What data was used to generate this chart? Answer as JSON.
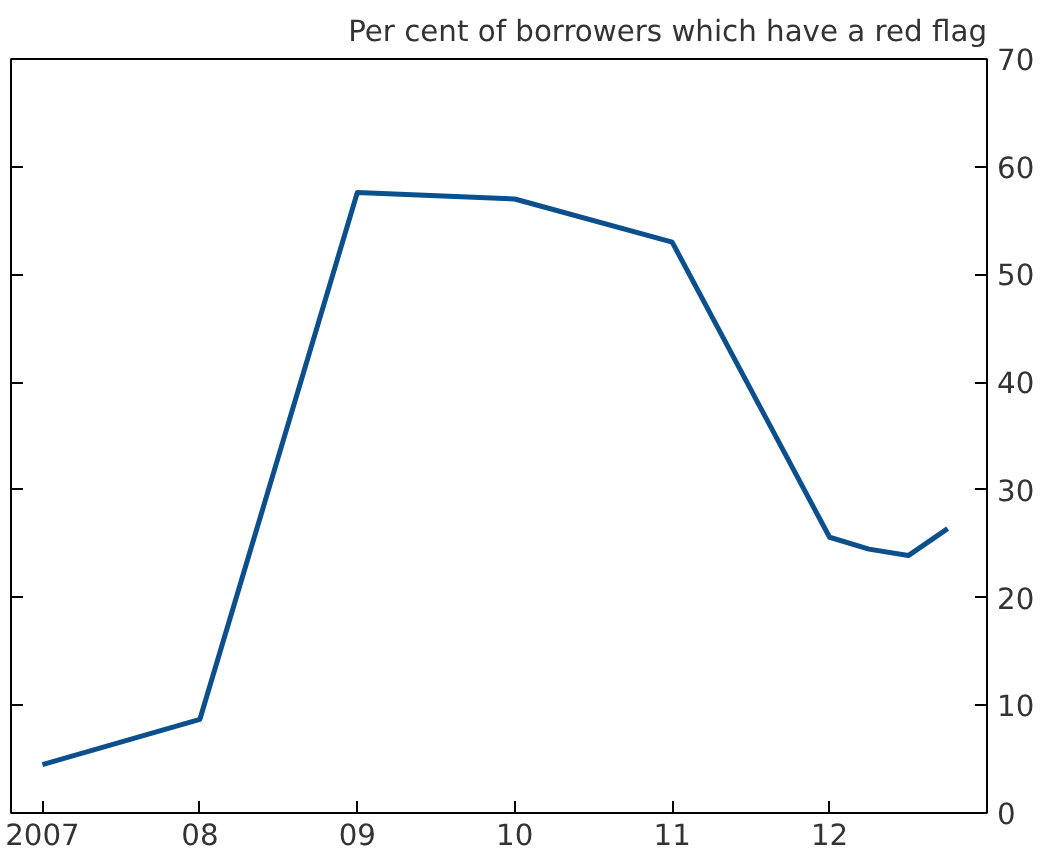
{
  "chart_data": {
    "type": "line",
    "ylabel": "Per cent of borrowers which have a red flag",
    "x": [
      2007.0,
      2008.0,
      2009.0,
      2010.0,
      2011.0,
      2012.0,
      2012.25,
      2012.5,
      2012.75
    ],
    "series": [
      {
        "color": "#0b4f8c",
        "values": [
          4.5,
          8.7,
          57.6,
          57.0,
          53.0,
          25.6,
          24.5,
          23.9,
          26.4
        ]
      }
    ],
    "xlim": [
      2006.8,
      2013.0
    ],
    "xticks": [
      {
        "value": 2007,
        "label": "2007"
      },
      {
        "value": 2008,
        "label": "08"
      },
      {
        "value": 2009,
        "label": "09"
      },
      {
        "value": 2010,
        "label": "10"
      },
      {
        "value": 2011,
        "label": "11"
      },
      {
        "value": 2012,
        "label": "12"
      }
    ],
    "ylim": [
      0,
      70
    ],
    "yticks": [
      0,
      10,
      20,
      30,
      40,
      50,
      60,
      70
    ],
    "grid": false,
    "marker": "none",
    "line_style": "solid"
  }
}
